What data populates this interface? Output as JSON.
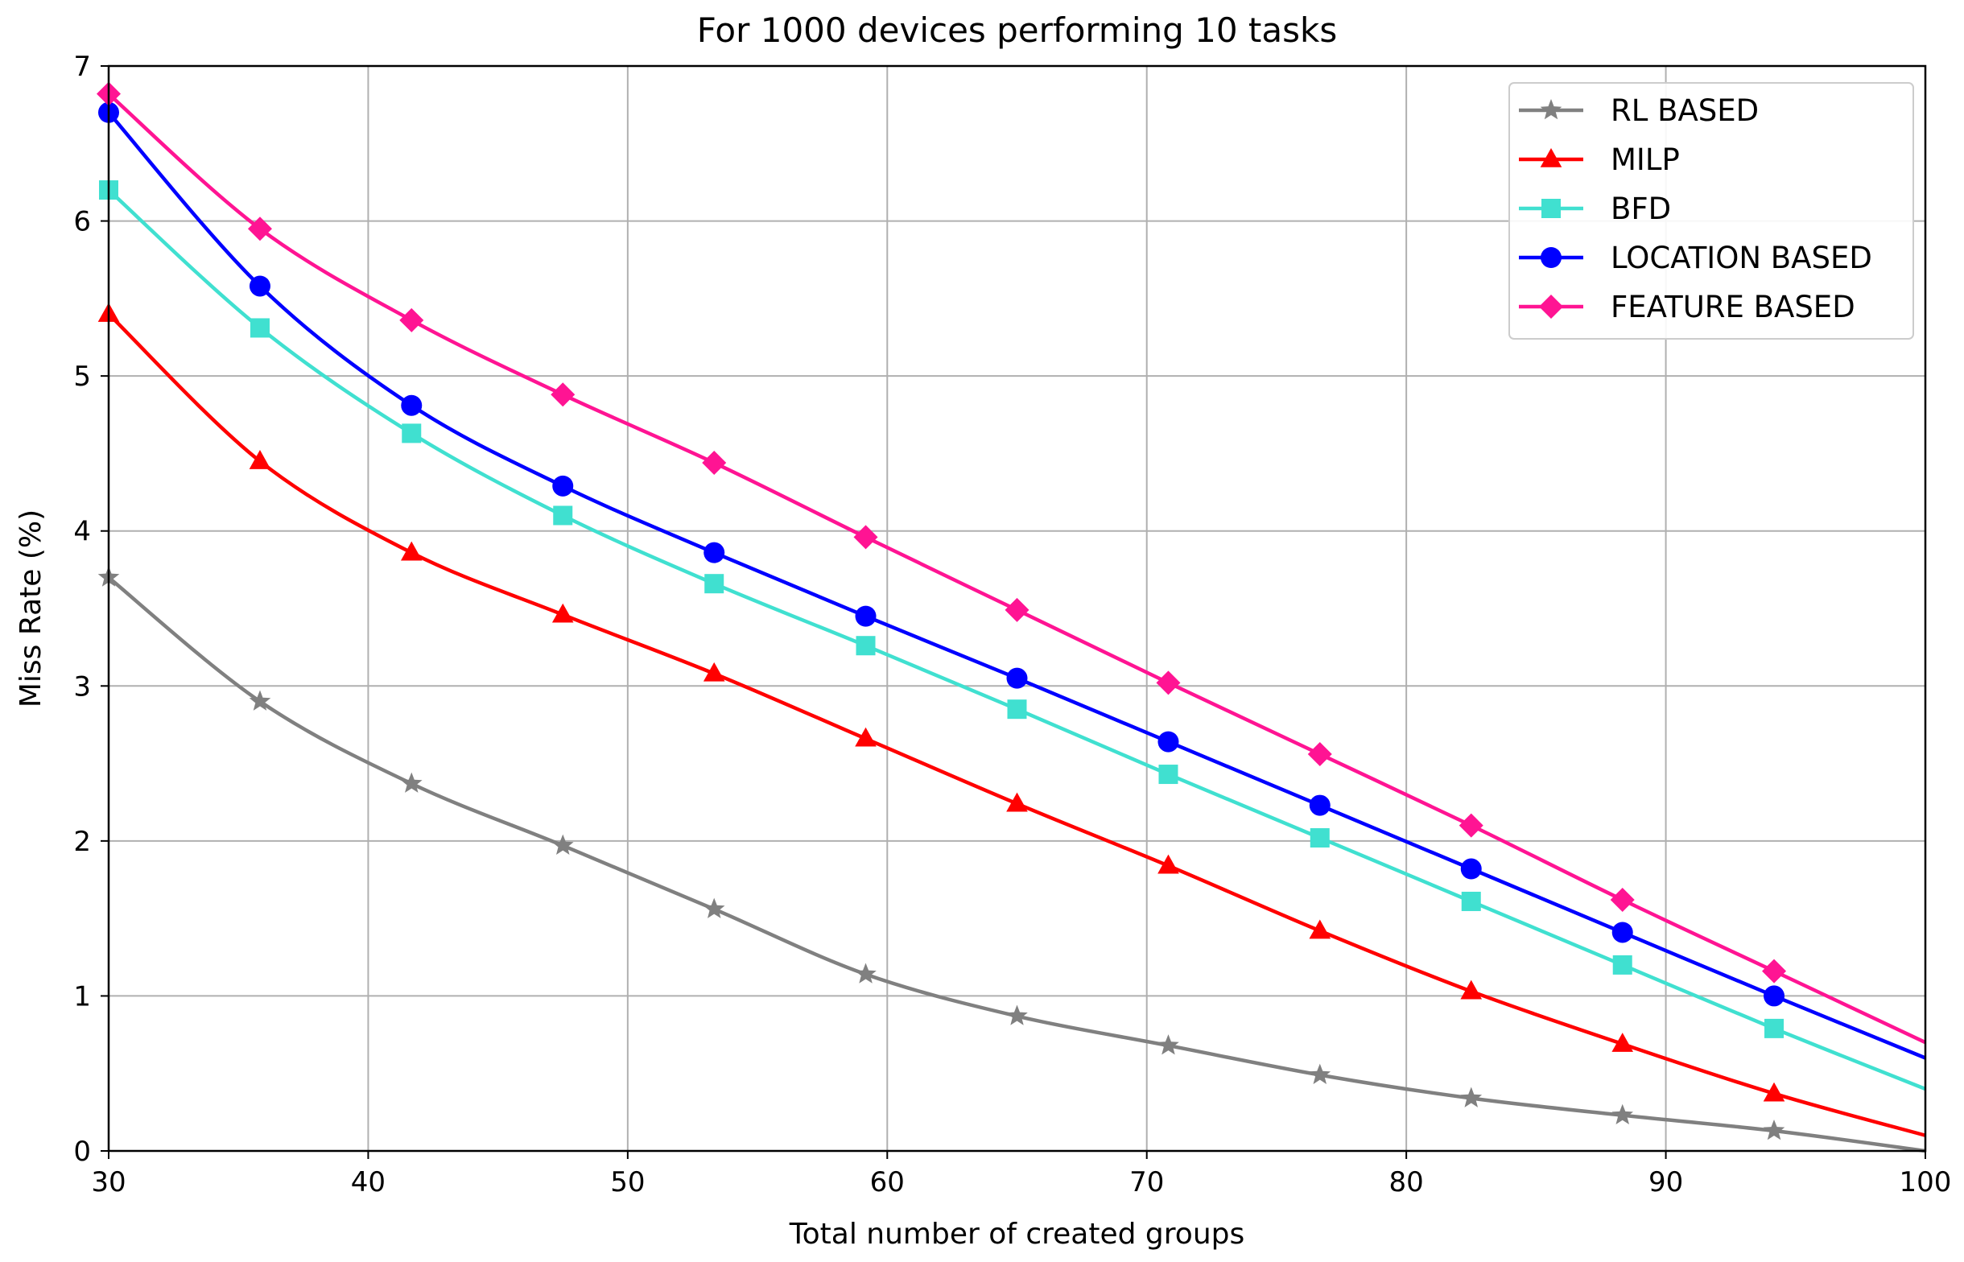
{
  "chart_data": {
    "type": "line",
    "title": "For 1000 devices performing 10 tasks",
    "xlabel": "Total number of created groups",
    "ylabel": "Miss Rate (%)",
    "xlim": [
      30,
      100
    ],
    "ylim": [
      0,
      7
    ],
    "xticks": [
      "30",
      "40",
      "50",
      "60",
      "70",
      "80",
      "90",
      "100"
    ],
    "yticks": [
      "0",
      "1",
      "2",
      "3",
      "4",
      "5",
      "6",
      "7"
    ],
    "grid": true,
    "legend_position": "top-right",
    "x": [
      30,
      35.83,
      41.67,
      47.5,
      53.33,
      59.17,
      65,
      70.83,
      76.67,
      82.5,
      88.33,
      94.17,
      100
    ],
    "series": [
      {
        "name": "RL BASED",
        "color": "#808080",
        "marker": "star",
        "values": [
          3.7,
          2.9,
          2.37,
          1.97,
          1.56,
          1.14,
          0.87,
          0.68,
          0.49,
          0.34,
          0.23,
          0.13,
          0.0
        ]
      },
      {
        "name": "MILP",
        "color": "#ff0000",
        "marker": "triangle",
        "values": [
          5.4,
          4.45,
          3.86,
          3.46,
          3.08,
          2.66,
          2.24,
          1.84,
          1.42,
          1.03,
          0.69,
          0.37,
          0.1
        ]
      },
      {
        "name": "BFD",
        "color": "#40e0d0",
        "marker": "square",
        "values": [
          6.2,
          5.31,
          4.63,
          4.1,
          3.66,
          3.26,
          2.85,
          2.43,
          2.02,
          1.61,
          1.2,
          0.79,
          0.4
        ]
      },
      {
        "name": "LOCATION BASED",
        "color": "#0000ff",
        "marker": "circle",
        "values": [
          6.7,
          5.58,
          4.81,
          4.29,
          3.86,
          3.45,
          3.05,
          2.64,
          2.23,
          1.82,
          1.41,
          1.0,
          0.6
        ]
      },
      {
        "name": "FEATURE BASED",
        "color": "#ff1493",
        "marker": "diamond",
        "values": [
          6.82,
          5.95,
          5.36,
          4.88,
          4.44,
          3.96,
          3.49,
          3.02,
          2.56,
          2.1,
          1.62,
          1.16,
          0.7
        ]
      }
    ]
  }
}
